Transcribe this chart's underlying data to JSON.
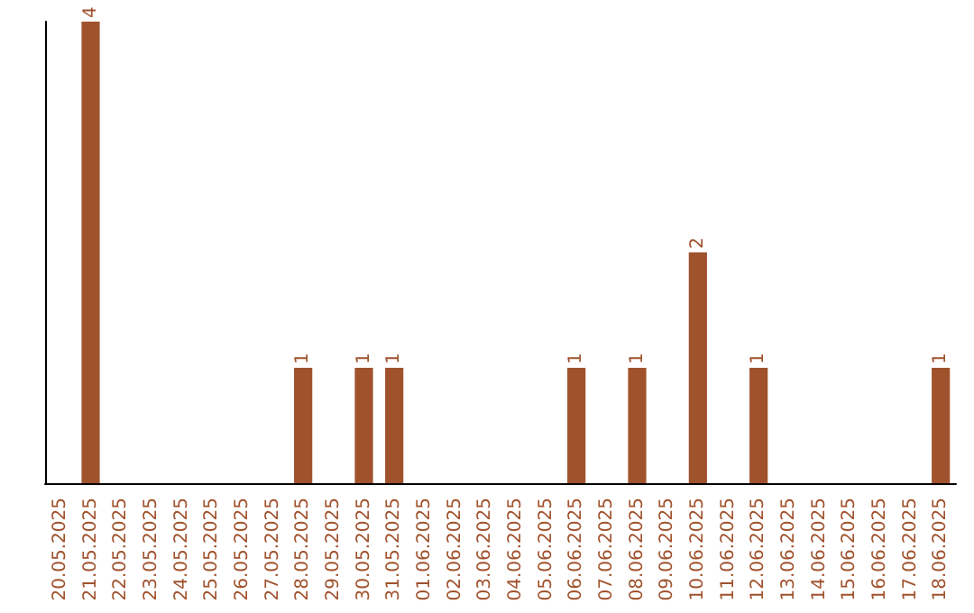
{
  "chart_data": {
    "type": "bar",
    "categories": [
      "20.05.2025",
      "21.05.2025",
      "22.05.2025",
      "23.05.2025",
      "24.05.2025",
      "25.05.2025",
      "26.05.2025",
      "27.05.2025",
      "28.05.2025",
      "29.05.2025",
      "30.05.2025",
      "31.05.2025",
      "01.06.2025",
      "02.06.2025",
      "03.06.2025",
      "04.06.2025",
      "05.06.2025",
      "06.06.2025",
      "07.06.2025",
      "08.06.2025",
      "09.06.2025",
      "10.06.2025",
      "11.06.2025",
      "12.06.2025",
      "13.06.2025",
      "14.06.2025",
      "15.06.2025",
      "16.06.2025",
      "17.06.2025",
      "18.06.2025"
    ],
    "values": [
      0,
      4,
      0,
      0,
      0,
      0,
      0,
      0,
      1,
      0,
      1,
      1,
      0,
      0,
      0,
      0,
      0,
      1,
      0,
      1,
      0,
      2,
      0,
      1,
      0,
      0,
      0,
      0,
      0,
      1
    ],
    "value_labels": [
      null,
      "4",
      null,
      null,
      null,
      null,
      null,
      null,
      "1",
      null,
      "1",
      "1",
      null,
      null,
      null,
      null,
      null,
      "1",
      null,
      "1",
      null,
      "2",
      null,
      "1",
      null,
      null,
      null,
      null,
      null,
      "1"
    ],
    "color": "#a0522d",
    "grid": false,
    "tick_labels": "x"
  }
}
